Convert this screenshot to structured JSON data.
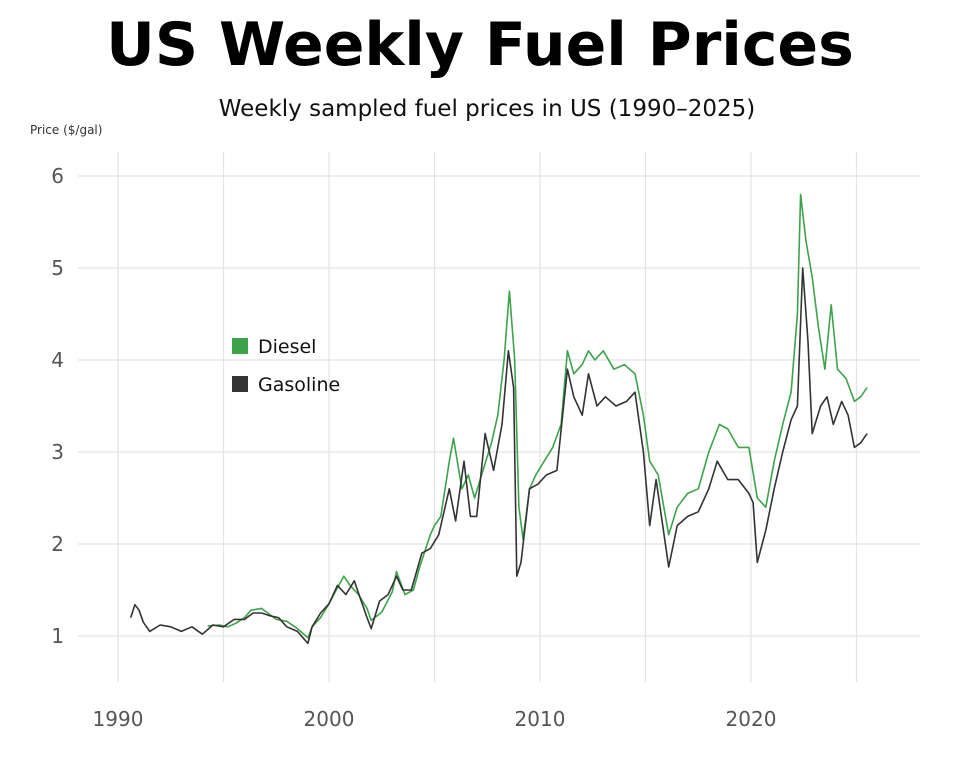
{
  "chart_data": {
    "type": "line",
    "title": "US Weekly Fuel Prices",
    "subtitle": "Weekly sampled fuel prices in US (1990–2025)",
    "xlabel": "",
    "ylabel": "Price ($/gal)",
    "xlim": [
      1990,
      2028
    ],
    "ylim": [
      0.5,
      6.3
    ],
    "xticks": [
      1990,
      2000,
      2010,
      2020
    ],
    "yticks": [
      1,
      2,
      3,
      4,
      5,
      6
    ],
    "grid": true,
    "legend_position": "upper-left inside plot",
    "series": [
      {
        "name": "Diesel",
        "color": "#3da34a",
        "x": [
          1994.25,
          1994.8,
          1995.2,
          1995.6,
          1996.0,
          1996.3,
          1996.8,
          1997.1,
          1997.5,
          1998.0,
          1998.5,
          1999.0,
          1999.2,
          1999.6,
          2000.0,
          2000.3,
          2000.7,
          2001.0,
          2001.4,
          2001.8,
          2002.0,
          2002.5,
          2003.0,
          2003.2,
          2003.6,
          2004.0,
          2004.3,
          2004.8,
          2005.0,
          2005.3,
          2005.7,
          2005.9,
          2006.3,
          2006.6,
          2006.9,
          2007.3,
          2007.7,
          2008.0,
          2008.3,
          2008.55,
          2008.8,
          2009.0,
          2009.2,
          2009.5,
          2009.8,
          2010.2,
          2010.6,
          2011.0,
          2011.3,
          2011.6,
          2012.0,
          2012.3,
          2012.6,
          2013.0,
          2013.5,
          2014.0,
          2014.5,
          2014.9,
          2015.2,
          2015.6,
          2016.1,
          2016.5,
          2017.0,
          2017.5,
          2018.0,
          2018.5,
          2018.9,
          2019.4,
          2019.9,
          2020.3,
          2020.7,
          2021.1,
          2021.5,
          2021.9,
          2022.2,
          2022.35,
          2022.6,
          2022.9,
          2023.2,
          2023.5,
          2023.8,
          2024.1,
          2024.5,
          2024.9,
          2025.2,
          2025.5
        ],
        "y": [
          1.11,
          1.12,
          1.1,
          1.14,
          1.2,
          1.28,
          1.3,
          1.25,
          1.18,
          1.16,
          1.08,
          0.98,
          1.1,
          1.2,
          1.35,
          1.48,
          1.65,
          1.55,
          1.45,
          1.3,
          1.17,
          1.26,
          1.48,
          1.7,
          1.45,
          1.5,
          1.75,
          2.1,
          2.2,
          2.3,
          2.9,
          3.15,
          2.6,
          2.75,
          2.5,
          2.8,
          3.1,
          3.4,
          4.0,
          4.75,
          4.0,
          2.4,
          2.05,
          2.6,
          2.75,
          2.9,
          3.05,
          3.3,
          4.1,
          3.85,
          3.95,
          4.1,
          4.0,
          4.1,
          3.9,
          3.95,
          3.85,
          3.4,
          2.9,
          2.75,
          2.1,
          2.4,
          2.55,
          2.6,
          3.0,
          3.3,
          3.25,
          3.05,
          3.05,
          2.5,
          2.4,
          2.9,
          3.3,
          3.65,
          4.5,
          5.8,
          5.3,
          4.9,
          4.35,
          3.9,
          4.6,
          3.9,
          3.8,
          3.55,
          3.6,
          3.7
        ]
      },
      {
        "name": "Gasoline",
        "color": "#333333",
        "x": [
          1990.6,
          1990.8,
          1991.0,
          1991.2,
          1991.5,
          1992.0,
          1992.5,
          1993.0,
          1993.5,
          1994.0,
          1994.5,
          1995.0,
          1995.5,
          1996.0,
          1996.4,
          1996.8,
          1997.2,
          1997.6,
          1998.0,
          1998.5,
          1999.0,
          1999.2,
          1999.6,
          2000.0,
          2000.4,
          2000.8,
          2001.2,
          2001.5,
          2001.8,
          2002.0,
          2002.4,
          2002.8,
          2003.2,
          2003.5,
          2003.9,
          2004.4,
          2004.8,
          2005.2,
          2005.7,
          2006.0,
          2006.4,
          2006.7,
          2007.0,
          2007.4,
          2007.8,
          2008.2,
          2008.5,
          2008.75,
          2008.9,
          2009.1,
          2009.5,
          2009.9,
          2010.3,
          2010.8,
          2011.3,
          2011.6,
          2012.0,
          2012.3,
          2012.7,
          2013.1,
          2013.6,
          2014.1,
          2014.5,
          2014.9,
          2015.2,
          2015.5,
          2016.1,
          2016.5,
          2017.0,
          2017.5,
          2018.0,
          2018.4,
          2018.9,
          2019.4,
          2019.9,
          2020.1,
          2020.3,
          2020.7,
          2021.1,
          2021.5,
          2021.9,
          2022.2,
          2022.45,
          2022.7,
          2022.9,
          2023.3,
          2023.6,
          2023.9,
          2024.3,
          2024.6,
          2024.9,
          2025.2,
          2025.5
        ],
        "y": [
          1.2,
          1.34,
          1.28,
          1.15,
          1.05,
          1.12,
          1.1,
          1.05,
          1.1,
          1.02,
          1.12,
          1.1,
          1.18,
          1.18,
          1.25,
          1.25,
          1.22,
          1.2,
          1.1,
          1.05,
          0.92,
          1.1,
          1.25,
          1.35,
          1.55,
          1.45,
          1.6,
          1.4,
          1.2,
          1.08,
          1.38,
          1.45,
          1.65,
          1.5,
          1.5,
          1.9,
          1.95,
          2.1,
          2.6,
          2.25,
          2.9,
          2.3,
          2.3,
          3.2,
          2.8,
          3.3,
          4.1,
          3.7,
          1.65,
          1.8,
          2.6,
          2.65,
          2.75,
          2.8,
          3.9,
          3.6,
          3.4,
          3.85,
          3.5,
          3.6,
          3.5,
          3.55,
          3.65,
          3.0,
          2.2,
          2.7,
          1.75,
          2.2,
          2.3,
          2.35,
          2.6,
          2.9,
          2.7,
          2.7,
          2.55,
          2.45,
          1.8,
          2.15,
          2.6,
          3.0,
          3.35,
          3.5,
          5.0,
          4.2,
          3.2,
          3.5,
          3.6,
          3.3,
          3.55,
          3.4,
          3.05,
          3.1,
          3.2
        ]
      }
    ]
  }
}
